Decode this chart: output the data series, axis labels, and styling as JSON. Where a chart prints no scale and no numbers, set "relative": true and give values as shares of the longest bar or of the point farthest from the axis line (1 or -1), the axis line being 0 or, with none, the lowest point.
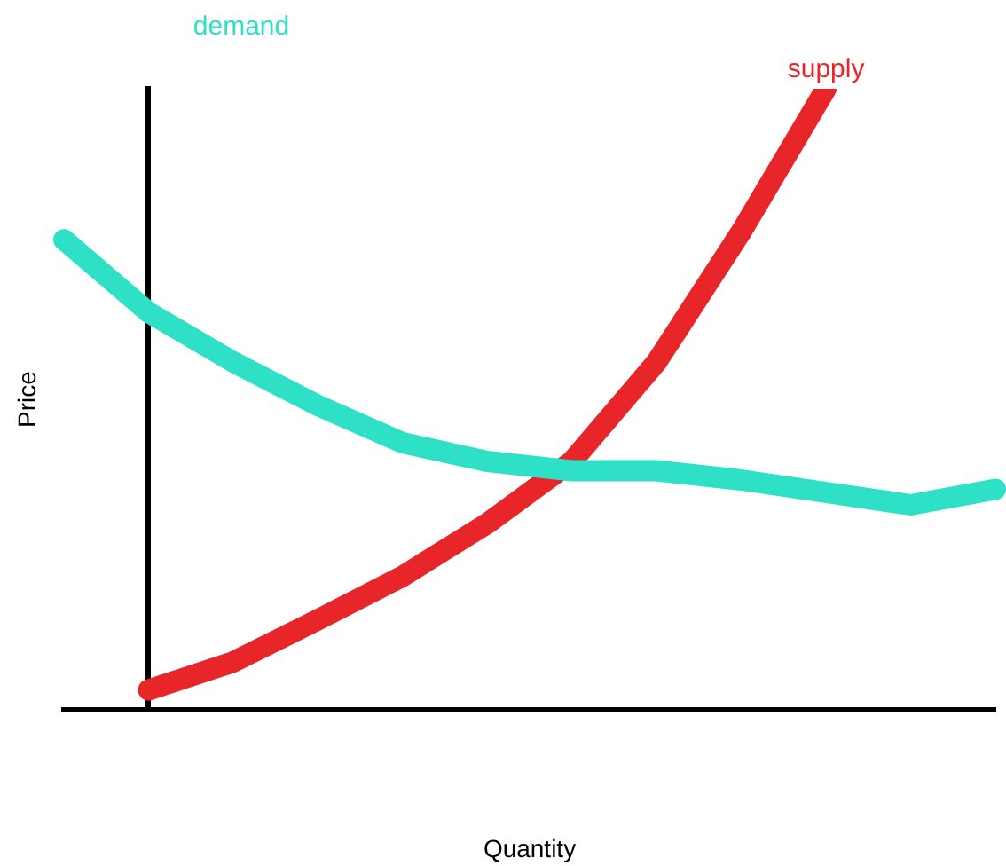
{
  "chart_data": {
    "type": "line",
    "relative": true,
    "xlabel": "Quantity",
    "ylabel": "Price",
    "marker": "none",
    "grid": false,
    "legend": false,
    "categories": [
      null,
      null,
      null,
      null,
      null,
      null,
      null,
      null,
      null,
      null,
      null,
      null
    ],
    "series": [
      {
        "name": "demand",
        "color": "#2ee0c6",
        "values": [
          0.757,
          0.64,
          0.56,
          0.49,
          0.43,
          0.4,
          0.385,
          0.385,
          0.37,
          0.35,
          0.33,
          0.355
        ]
      },
      {
        "name": "supply",
        "color": "#e8262a",
        "values": [
          null,
          0.032,
          0.077,
          0.145,
          0.215,
          0.3,
          0.4,
          0.56,
          0.77,
          1,
          null,
          null
        ]
      }
    ]
  }
}
